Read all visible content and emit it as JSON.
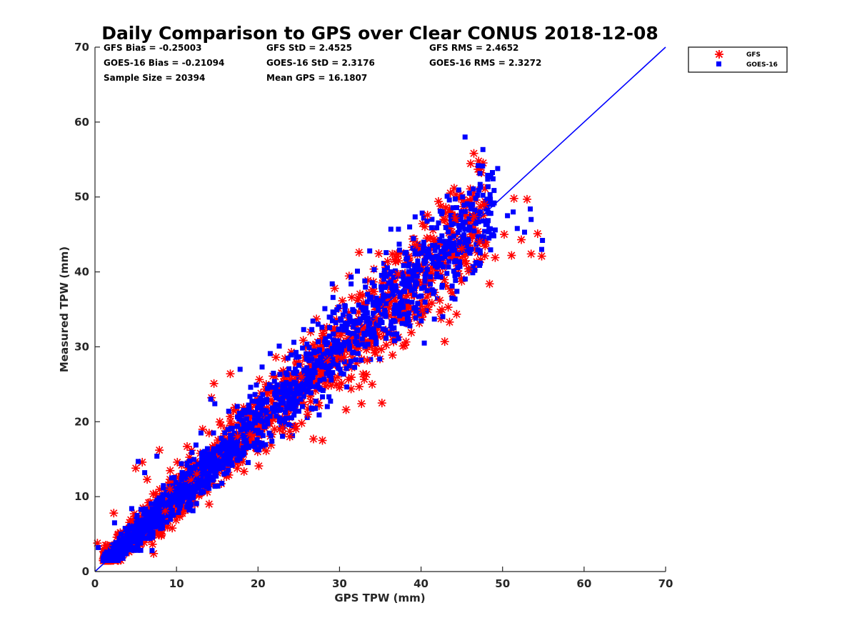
{
  "chart_data": {
    "type": "scatter",
    "title": "Daily Comparison to GPS over Clear CONUS 2018-12-08",
    "xlabel": "GPS TPW (mm)",
    "ylabel": "Measured TPW (mm)",
    "xlim": [
      0,
      70
    ],
    "ylim": [
      0,
      70
    ],
    "xticks": [
      "0",
      "10",
      "20",
      "30",
      "40",
      "50",
      "60",
      "70"
    ],
    "yticks": [
      "0",
      "10",
      "20",
      "30",
      "40",
      "50",
      "60",
      "70"
    ],
    "grid": false,
    "legend_position": "outside-top-right",
    "stats": [
      [
        "GFS Bias = -0.25003",
        "GFS StD = 2.4525",
        "GFS RMS = 2.4652"
      ],
      [
        "GOES-16 Bias = -0.21094",
        "GOES-16 StD = 2.3176",
        "GOES-16 RMS = 2.3272"
      ],
      [
        "Sample Size = 20394",
        "Mean GPS = 16.1807",
        ""
      ]
    ],
    "series": [
      {
        "name": "GFS",
        "marker": "asterisk",
        "color": "#ff0000"
      },
      {
        "name": "GOES-16",
        "marker": "square",
        "color": "#0000ff"
      }
    ],
    "reference_line": {
      "name": "1:1 line",
      "from": [
        0,
        0
      ],
      "to": [
        70,
        70
      ],
      "color": "#0000ff"
    },
    "gfs_points": [
      [
        0.3,
        3.8
      ],
      [
        1.5,
        3.5
      ],
      [
        2.3,
        7.8
      ],
      [
        3.1,
        5.2
      ],
      [
        4.4,
        6.9
      ],
      [
        5.0,
        13.8
      ],
      [
        5.8,
        14.6
      ],
      [
        6.4,
        12.3
      ],
      [
        7.2,
        2.4
      ],
      [
        7.9,
        16.2
      ],
      [
        8.6,
        8.1
      ],
      [
        9.2,
        11.0
      ],
      [
        10.1,
        14.6
      ],
      [
        11.3,
        16.7
      ],
      [
        11.8,
        12.2
      ],
      [
        12.5,
        13.0
      ],
      [
        13.2,
        19.0
      ],
      [
        14.0,
        9.0
      ],
      [
        14.3,
        23.2
      ],
      [
        14.6,
        25.1
      ],
      [
        16.6,
        26.4
      ],
      [
        17.5,
        18.0
      ],
      [
        19.0,
        18.3
      ],
      [
        20.1,
        14.1
      ],
      [
        21.0,
        16.1
      ],
      [
        22.2,
        28.6
      ],
      [
        23.0,
        19.2
      ],
      [
        23.9,
        18.0
      ],
      [
        24.6,
        19.4
      ],
      [
        25.3,
        26.0
      ],
      [
        26.1,
        21.0
      ],
      [
        26.8,
        17.7
      ],
      [
        27.9,
        17.5
      ],
      [
        28.5,
        28.3
      ],
      [
        29.4,
        37.8
      ],
      [
        30.2,
        28.5
      ],
      [
        30.8,
        21.6
      ],
      [
        31.5,
        36.6
      ],
      [
        32.4,
        42.6
      ],
      [
        32.7,
        22.4
      ],
      [
        33.4,
        28.2
      ],
      [
        34.0,
        25.0
      ],
      [
        34.6,
        33.8
      ],
      [
        35.2,
        22.5
      ],
      [
        35.9,
        41.4
      ],
      [
        36.5,
        28.9
      ],
      [
        37.2,
        39.7
      ],
      [
        38.0,
        30.2
      ],
      [
        38.8,
        31.9
      ],
      [
        39.4,
        43.6
      ],
      [
        40.2,
        34.9
      ],
      [
        40.8,
        47.6
      ],
      [
        41.6,
        44.4
      ],
      [
        42.3,
        36.2
      ],
      [
        42.9,
        30.7
      ],
      [
        43.5,
        33.3
      ],
      [
        44.2,
        47.2
      ],
      [
        45.0,
        43.1
      ],
      [
        45.8,
        40.4
      ],
      [
        46.5,
        47.4
      ],
      [
        47.2,
        44.0
      ],
      [
        47.8,
        49.0
      ],
      [
        48.4,
        38.4
      ],
      [
        49.1,
        41.9
      ],
      [
        50.2,
        45.0
      ],
      [
        51.1,
        42.2
      ],
      [
        51.4,
        49.8
      ],
      [
        52.3,
        44.3
      ],
      [
        53.0,
        49.7
      ],
      [
        53.5,
        42.4
      ],
      [
        54.3,
        45.1
      ],
      [
        54.8,
        42.1
      ]
    ],
    "goes_points": [
      [
        0.4,
        3.2
      ],
      [
        1.6,
        2.1
      ],
      [
        2.4,
        6.5
      ],
      [
        3.2,
        5.0
      ],
      [
        4.5,
        8.4
      ],
      [
        5.3,
        14.7
      ],
      [
        6.1,
        13.2
      ],
      [
        7.0,
        2.8
      ],
      [
        7.6,
        15.4
      ],
      [
        8.4,
        10.2
      ],
      [
        9.4,
        12.5
      ],
      [
        10.6,
        14.4
      ],
      [
        11.9,
        15.9
      ],
      [
        13.0,
        18.5
      ],
      [
        14.2,
        23.0
      ],
      [
        14.7,
        22.4
      ],
      [
        16.4,
        21.4
      ],
      [
        17.8,
        27.0
      ],
      [
        18.6,
        19.2
      ],
      [
        19.8,
        24.9
      ],
      [
        20.5,
        27.3
      ],
      [
        21.5,
        29.1
      ],
      [
        22.6,
        30.1
      ],
      [
        23.4,
        24.1
      ],
      [
        24.4,
        30.6
      ],
      [
        25.0,
        21.4
      ],
      [
        25.6,
        32.3
      ],
      [
        26.6,
        32.3
      ],
      [
        27.5,
        20.9
      ],
      [
        28.2,
        35.1
      ],
      [
        29.1,
        38.4
      ],
      [
        29.8,
        30.8
      ],
      [
        30.7,
        35.4
      ],
      [
        31.6,
        29.3
      ],
      [
        32.2,
        40.1
      ],
      [
        33.1,
        38.8
      ],
      [
        33.7,
        42.8
      ],
      [
        34.4,
        31.2
      ],
      [
        35.0,
        33.6
      ],
      [
        35.5,
        40.2
      ],
      [
        36.3,
        45.7
      ],
      [
        37.1,
        35.4
      ],
      [
        37.8,
        39.4
      ],
      [
        38.6,
        46.0
      ],
      [
        39.3,
        38.3
      ],
      [
        39.7,
        42.4
      ],
      [
        40.4,
        30.5
      ],
      [
        41.3,
        45.9
      ],
      [
        41.9,
        41.0
      ],
      [
        42.6,
        48.0
      ],
      [
        43.2,
        50.1
      ],
      [
        43.8,
        36.5
      ],
      [
        44.4,
        37.4
      ],
      [
        45.1,
        50.0
      ],
      [
        45.4,
        58.0
      ],
      [
        45.9,
        46.0
      ],
      [
        46.7,
        49.8
      ],
      [
        47.3,
        51.3
      ],
      [
        47.8,
        45.4
      ],
      [
        48.5,
        49.7
      ],
      [
        49.1,
        45.6
      ],
      [
        49.4,
        53.8
      ],
      [
        50.6,
        47.5
      ],
      [
        51.3,
        48.0
      ],
      [
        51.8,
        45.8
      ],
      [
        52.7,
        45.3
      ],
      [
        53.4,
        48.4
      ],
      [
        53.5,
        47.0
      ],
      [
        54.8,
        43.0
      ],
      [
        54.9,
        44.2
      ]
    ]
  }
}
